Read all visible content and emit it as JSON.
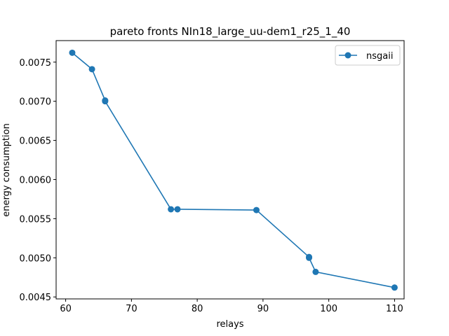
{
  "chart_data": {
    "type": "line",
    "title": "pareto fronts NIn18_large_uu-dem1_r25_1_40",
    "xlabel": "relays",
    "ylabel": "energy consumption",
    "xlim": [
      58.55,
      111.45
    ],
    "ylim": [
      0.004475,
      0.007775
    ],
    "xticks": [
      60,
      70,
      80,
      90,
      100,
      110
    ],
    "yticks": [
      0.0045,
      0.005,
      0.0055,
      0.006,
      0.0065,
      0.007,
      0.0075
    ],
    "ytick_labels": [
      "0.0045",
      "0.0050",
      "0.0055",
      "0.0060",
      "0.0065",
      "0.0070",
      "0.0075"
    ],
    "grid": false,
    "legend_position": "top-right",
    "series": [
      {
        "name": "nsgaii",
        "color": "#1f77b4",
        "marker": "circle",
        "x": [
          61,
          64,
          66,
          66,
          76,
          77,
          89,
          97,
          97,
          98,
          110
        ],
        "y": [
          0.00762,
          0.00741,
          0.00701,
          0.007,
          0.00562,
          0.00562,
          0.00561,
          0.00501,
          0.005,
          0.00482,
          0.00462
        ]
      }
    ]
  }
}
